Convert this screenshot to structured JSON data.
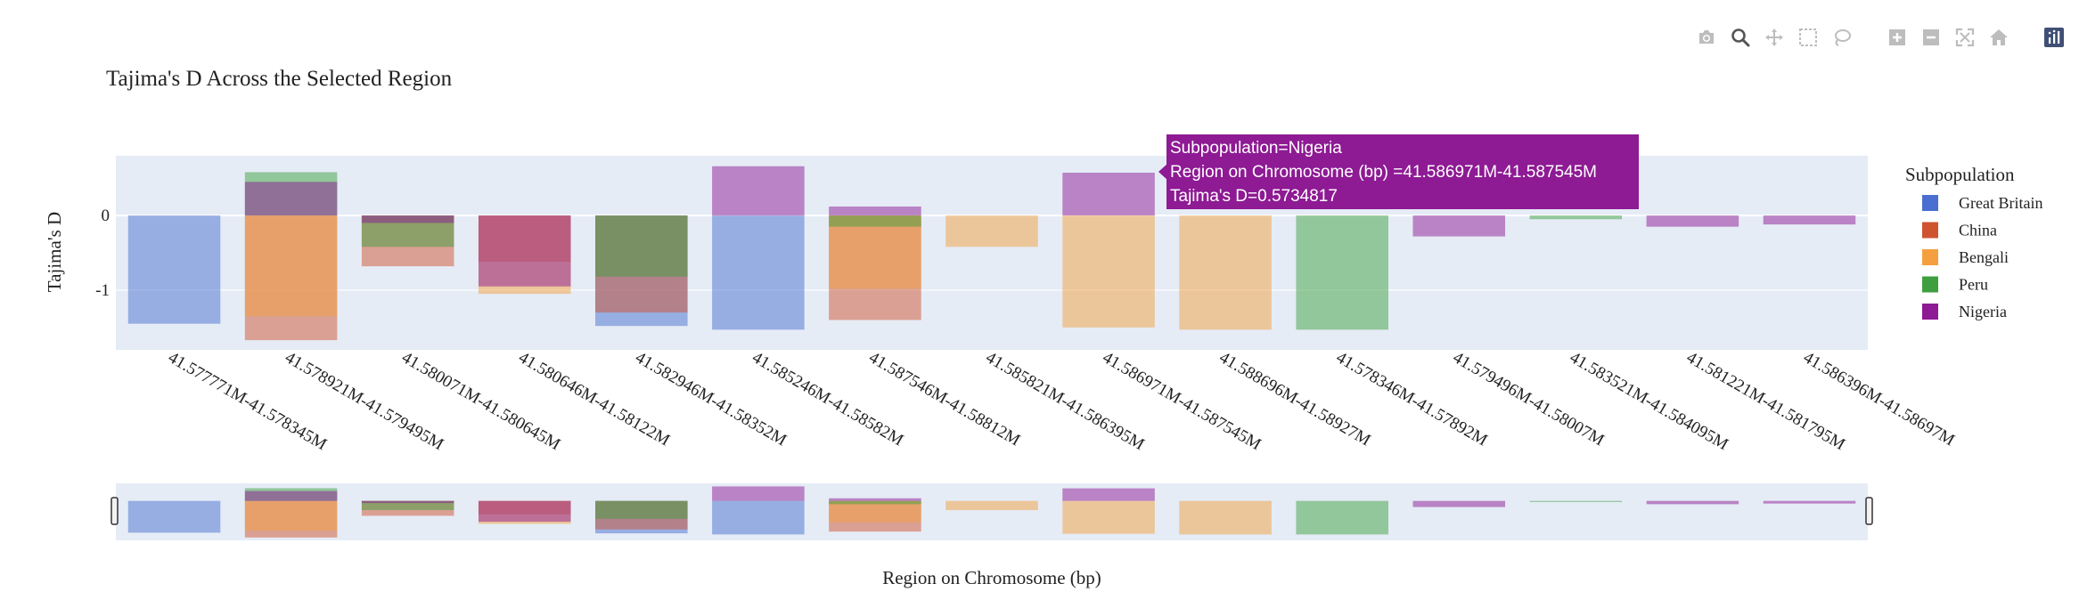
{
  "modebar": {
    "buttons": [
      "camera-icon",
      "zoom-icon",
      "pan-icon",
      "box-select-icon",
      "lasso-icon",
      "zoom-in-icon",
      "zoom-out-icon",
      "autoscale-icon",
      "reset-axes-icon",
      "plotly-logo-icon"
    ]
  },
  "tooltip": {
    "line1": "Subpopulation=Nigeria",
    "line2": "Region on Chromosome (bp) =41.586971M-41.587545M",
    "line3": "Tajima's D=0.5734817",
    "color": "#8e1a94"
  },
  "chart_data": {
    "type": "bar",
    "title": "Tajima's D Across the Selected Region",
    "xlabel": "Region on Chromosome (bp)",
    "ylabel": "Tajima's D",
    "legend_title": "Subpopulation",
    "legend_position": "right",
    "barmode": "overlay",
    "ylim": [
      -1.8,
      0.8
    ],
    "yticks": [
      0,
      -1
    ],
    "grid": true,
    "categories": [
      "41.577771M-41.578345M",
      "41.578921M-41.579495M",
      "41.580071M-41.580645M",
      "41.580646M-41.58122M",
      "41.582946M-41.58352M",
      "41.585246M-41.58582M",
      "41.587546M-41.58812M",
      "41.585821M-41.586395M",
      "41.586971M-41.587545M",
      "41.588696M-41.58927M",
      "41.578346M-41.57892M",
      "41.579496M-41.58007M",
      "41.583521M-41.584095M",
      "41.581221M-41.581795M",
      "41.586396M-41.58697M"
    ],
    "series": [
      {
        "name": "Great Britain",
        "color": "#4a6fd0",
        "values": [
          -1.45,
          null,
          null,
          null,
          -1.48,
          -1.53,
          null,
          null,
          null,
          null,
          null,
          null,
          null,
          null,
          null
        ]
      },
      {
        "name": "China",
        "color": "#d0532f",
        "values": [
          null,
          -1.67,
          -0.68,
          -0.62,
          -1.3,
          null,
          -1.4,
          null,
          null,
          null,
          null,
          null,
          null,
          null,
          null
        ]
      },
      {
        "name": "Bengali",
        "color": "#f4a040",
        "values": [
          null,
          -1.35,
          null,
          -1.05,
          null,
          null,
          -0.98,
          -0.42,
          -1.5,
          -1.53,
          null,
          null,
          null,
          null,
          null
        ]
      },
      {
        "name": "Peru",
        "color": "#3f9f3f",
        "values": [
          null,
          0.58,
          -0.42,
          null,
          -0.82,
          null,
          -0.15,
          null,
          null,
          null,
          -1.53,
          null,
          -0.05,
          null,
          null
        ]
      },
      {
        "name": "Nigeria",
        "color": "#8e1a94",
        "values": [
          null,
          0.45,
          -0.1,
          -0.95,
          null,
          0.66,
          0.12,
          null,
          0.5734817,
          null,
          null,
          -0.28,
          null,
          -0.15,
          -0.12
        ]
      }
    ]
  }
}
